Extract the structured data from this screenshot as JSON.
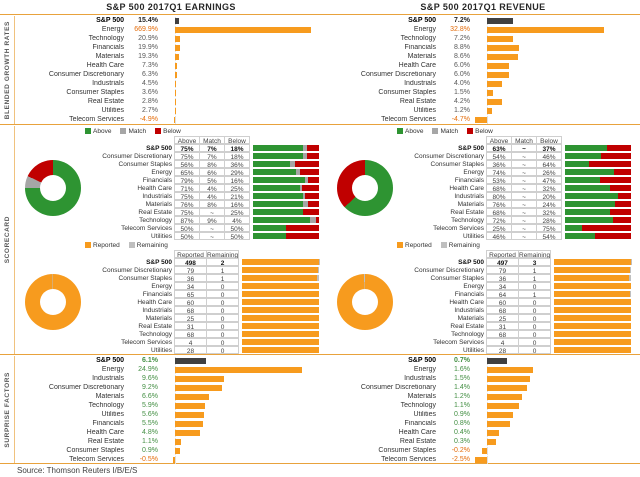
{
  "titles": {
    "earnings": "S&P 500 2017Q1 EARNINGS",
    "revenue": "S&P 500 2017Q1 REVENUE"
  },
  "section_labels": {
    "growth": "BLENDED GROWTH RATES",
    "scorecard": "SCORECARD",
    "surprise": "SURPRISE FACTORS"
  },
  "source": "Source: Thomson Reuters I/B/E/S",
  "colors": {
    "sp500_bar": "#404040",
    "sector_bar": "#F79B1E",
    "above": "#2E9432",
    "match": "#A6A6A6",
    "below": "#C00000",
    "reported": "#F79B1E",
    "remaining": "#BFBFBF",
    "positive_text": "#438F43",
    "negative_text": "#E46C0A",
    "neutral_text": "#595959",
    "bold_text": "#1F1F1F",
    "rule": "#E8A23C"
  },
  "legends": {
    "beats": [
      {
        "label": "Above",
        "key": "above"
      },
      {
        "label": "Match",
        "key": "match"
      },
      {
        "label": "Below",
        "key": "below"
      }
    ],
    "reported": [
      {
        "label": "Reported",
        "key": "reported"
      },
      {
        "label": "Remaining",
        "key": "remaining"
      }
    ]
  },
  "chart_data": [
    {
      "id": "earnings-growth",
      "type": "bar",
      "title": "S&P 500 2017Q1 EARNINGS - Blended Growth Rates",
      "categories": [
        "S&P 500",
        "Energy",
        "Technology",
        "Financials",
        "Materials",
        "Health Care",
        "Consumer Discretionary",
        "Industrials",
        "Consumer Staples",
        "Real Estate",
        "Utilities",
        "Telecom Services"
      ],
      "values": [
        15.4,
        669.9,
        20.9,
        19.9,
        19.3,
        7.3,
        6.3,
        4.5,
        3.6,
        2.8,
        2.7,
        -4.9
      ],
      "labels": [
        "15.4%",
        "669.9%",
        "20.9%",
        "19.9%",
        "19.3%",
        "7.3%",
        "6.3%",
        "4.5%",
        "3.6%",
        "2.8%",
        "2.7%",
        "-4.9%"
      ],
      "value_styles": [
        "b",
        "hl",
        "n",
        "n",
        "n",
        "n",
        "n",
        "n",
        "n",
        "n",
        "n",
        "neg"
      ],
      "xlim": [
        -30,
        700
      ]
    },
    {
      "id": "revenue-growth",
      "type": "bar",
      "title": "S&P 500 2017Q1 REVENUE - Blended Growth Rates",
      "categories": [
        "S&P 500",
        "Energy",
        "Technology",
        "Financials",
        "Materials",
        "Health Care",
        "Consumer Discretionary",
        "Industrials",
        "Consumer Staples",
        "Real Estate",
        "Utilities",
        "Telecom Services"
      ],
      "values": [
        7.2,
        32.8,
        7.2,
        8.8,
        8.6,
        6.0,
        6.0,
        4.0,
        1.5,
        4.2,
        1.2,
        -4.7
      ],
      "labels": [
        "7.2%",
        "32.8%",
        "7.2%",
        "8.8%",
        "8.6%",
        "6.0%",
        "6.0%",
        "4.0%",
        "1.5%",
        "4.2%",
        "1.2%",
        "-4.7%"
      ],
      "value_styles": [
        "b",
        "hl",
        "n",
        "n",
        "n",
        "n",
        "n",
        "n",
        "n",
        "n",
        "n",
        "neg"
      ],
      "xlim": [
        -5,
        40
      ]
    },
    {
      "id": "earnings-scorecard-beats",
      "type": "stacked-bar",
      "title": "Earnings Scorecard - Above / Match / Below",
      "col_headers": [
        "Above",
        "Match",
        "Below"
      ],
      "categories": [
        "S&P 500",
        "Consumer Discretionary",
        "Consumer Staples",
        "Energy",
        "Financials",
        "Health Care",
        "Industrials",
        "Materials",
        "Real Estate",
        "Technology",
        "Telecom Services",
        "Utilities"
      ],
      "series": [
        {
          "name": "Above",
          "values": [
            75,
            75,
            56,
            65,
            79,
            71,
            75,
            76,
            75,
            87,
            50,
            50
          ]
        },
        {
          "name": "Match",
          "values": [
            7,
            7,
            8,
            6,
            5,
            4,
            4,
            8,
            0,
            9,
            0,
            0
          ]
        },
        {
          "name": "Below",
          "values": [
            18,
            18,
            36,
            29,
            16,
            25,
            21,
            16,
            25,
            4,
            50,
            50
          ]
        }
      ],
      "cell_labels": [
        [
          "75%",
          "7%",
          "18%"
        ],
        [
          "75%",
          "7%",
          "18%"
        ],
        [
          "56%",
          "8%",
          "36%"
        ],
        [
          "65%",
          "6%",
          "29%"
        ],
        [
          "79%",
          "5%",
          "16%"
        ],
        [
          "71%",
          "4%",
          "25%"
        ],
        [
          "75%",
          "4%",
          "21%"
        ],
        [
          "76%",
          "8%",
          "16%"
        ],
        [
          "75%",
          "~",
          "25%"
        ],
        [
          "87%",
          "9%",
          "4%"
        ],
        [
          "50%",
          "~",
          "50%"
        ],
        [
          "50%",
          "~",
          "50%"
        ]
      ]
    },
    {
      "id": "earnings-scorecard-reported",
      "type": "table",
      "title": "Earnings Scorecard - Reported / Remaining",
      "col_headers": [
        "Reported",
        "Remaining"
      ],
      "categories": [
        "S&P 500",
        "Consumer Discretionary",
        "Consumer Staples",
        "Energy",
        "Financials",
        "Health Care",
        "Industrials",
        "Materials",
        "Real Estate",
        "Technology",
        "Telecom Services",
        "Utilities"
      ],
      "series": [
        {
          "name": "Reported",
          "values": [
            498,
            79,
            36,
            34,
            65,
            60,
            68,
            25,
            31,
            68,
            4,
            28
          ]
        },
        {
          "name": "Remaining",
          "values": [
            2,
            1,
            1,
            0,
            0,
            0,
            0,
            0,
            0,
            0,
            0,
            0
          ]
        }
      ]
    },
    {
      "id": "revenue-scorecard-beats",
      "type": "stacked-bar",
      "title": "Revenue Scorecard - Above / Match / Below",
      "col_headers": [
        "Above",
        "Match",
        "Below"
      ],
      "categories": [
        "S&P 500",
        "Consumer Discretionary",
        "Consumer Staples",
        "Energy",
        "Financials",
        "Health Care",
        "Industrials",
        "Materials",
        "Real Estate",
        "Technology",
        "Telecom Services",
        "Utilities"
      ],
      "series": [
        {
          "name": "Above",
          "values": [
            63,
            54,
            36,
            74,
            53,
            68,
            80,
            76,
            68,
            72,
            25,
            46
          ]
        },
        {
          "name": "Match",
          "values": [
            0,
            0,
            0,
            0,
            0,
            0,
            0,
            0,
            0,
            0,
            0,
            0
          ]
        },
        {
          "name": "Below",
          "values": [
            37,
            46,
            64,
            26,
            47,
            32,
            20,
            24,
            32,
            28,
            75,
            54
          ]
        }
      ],
      "cell_labels": [
        [
          "63%",
          "~",
          "37%"
        ],
        [
          "54%",
          "~",
          "46%"
        ],
        [
          "36%",
          "~",
          "64%"
        ],
        [
          "74%",
          "~",
          "26%"
        ],
        [
          "53%",
          "~",
          "47%"
        ],
        [
          "68%",
          "~",
          "32%"
        ],
        [
          "80%",
          "~",
          "20%"
        ],
        [
          "76%",
          "~",
          "24%"
        ],
        [
          "68%",
          "~",
          "32%"
        ],
        [
          "72%",
          "~",
          "28%"
        ],
        [
          "25%",
          "~",
          "75%"
        ],
        [
          "46%",
          "~",
          "54%"
        ]
      ]
    },
    {
      "id": "revenue-scorecard-reported",
      "type": "table",
      "title": "Revenue Scorecard - Reported / Remaining",
      "col_headers": [
        "Reported",
        "Remaining"
      ],
      "categories": [
        "S&P 500",
        "Consumer Discretionary",
        "Consumer Staples",
        "Energy",
        "Financials",
        "Health Care",
        "Industrials",
        "Materials",
        "Real Estate",
        "Technology",
        "Telecom Services",
        "Utilities"
      ],
      "series": [
        {
          "name": "Reported",
          "values": [
            497,
            79,
            36,
            34,
            64,
            60,
            68,
            25,
            31,
            68,
            4,
            28
          ]
        },
        {
          "name": "Remaining",
          "values": [
            3,
            1,
            1,
            0,
            1,
            0,
            0,
            0,
            0,
            0,
            0,
            0
          ]
        }
      ]
    },
    {
      "id": "earnings-surprise",
      "type": "bar",
      "title": "S&P 500 2017Q1 EARNINGS - Surprise Factors",
      "categories": [
        "S&P 500",
        "Energy",
        "Industrials",
        "Consumer Discretionary",
        "Materials",
        "Technology",
        "Utilities",
        "Financials",
        "Health Care",
        "Real Estate",
        "Consumer Staples",
        "Telecom Services"
      ],
      "values": [
        6.1,
        24.9,
        9.6,
        9.2,
        6.6,
        5.9,
        5.6,
        5.5,
        4.8,
        1.1,
        0.9,
        -0.5
      ],
      "labels": [
        "6.1%",
        "24.9%",
        "9.6%",
        "9.2%",
        "6.6%",
        "5.9%",
        "5.6%",
        "5.5%",
        "4.8%",
        "1.1%",
        "0.9%",
        "-0.5%"
      ],
      "value_styles": [
        "gb",
        "g",
        "g",
        "g",
        "g",
        "g",
        "g",
        "g",
        "g",
        "g",
        "g",
        "neg"
      ],
      "xlim": [
        -2,
        28
      ]
    },
    {
      "id": "revenue-surprise",
      "type": "bar",
      "title": "S&P 500 2017Q1 REVENUE - Surprise Factors",
      "categories": [
        "S&P 500",
        "Energy",
        "Industrials",
        "Consumer Discretionary",
        "Materials",
        "Technology",
        "Utilities",
        "Financials",
        "Health Care",
        "Real Estate",
        "Consumer Staples",
        "Telecom Services"
      ],
      "values": [
        0.7,
        1.6,
        1.5,
        1.4,
        1.2,
        1.1,
        0.9,
        0.8,
        0.4,
        0.3,
        -0.2,
        -2.5
      ],
      "labels": [
        "0.7%",
        "1.6%",
        "1.5%",
        "1.4%",
        "1.2%",
        "1.1%",
        "0.9%",
        "0.8%",
        "0.4%",
        "0.3%",
        "-0.2%",
        "-2.5%"
      ],
      "value_styles": [
        "gb",
        "g",
        "g",
        "g",
        "g",
        "g",
        "g",
        "g",
        "g",
        "g",
        "neg",
        "neg"
      ],
      "xlim": [
        -3,
        5
      ]
    }
  ]
}
